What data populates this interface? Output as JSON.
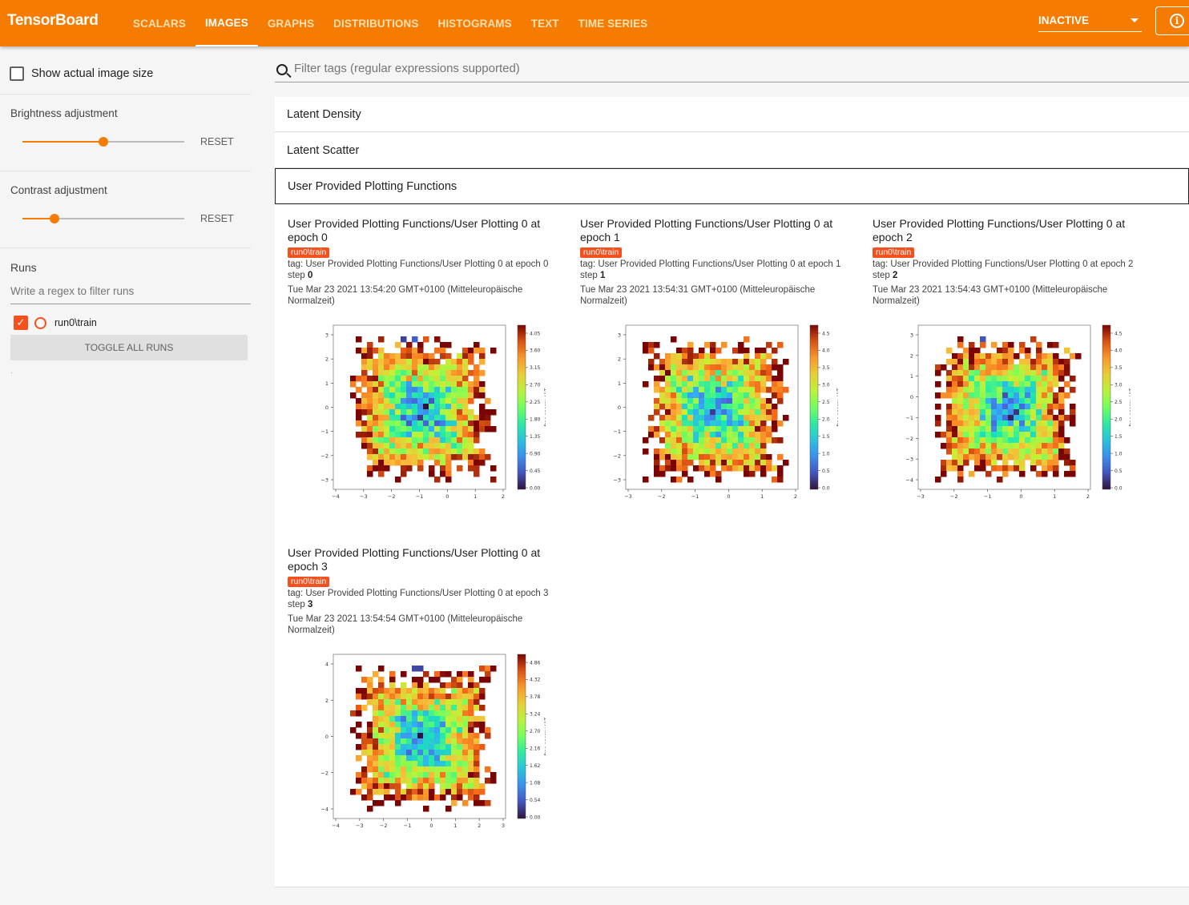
{
  "header": {
    "brand": "TensorBoard",
    "tabs": [
      {
        "label": "SCALARS",
        "active": false
      },
      {
        "label": "IMAGES",
        "active": true
      },
      {
        "label": "GRAPHS",
        "active": false
      },
      {
        "label": "DISTRIBUTIONS",
        "active": false
      },
      {
        "label": "HISTOGRAMS",
        "active": false
      },
      {
        "label": "TEXT",
        "active": false
      },
      {
        "label": "TIME SERIES",
        "active": false
      }
    ],
    "status_select": "INACTIVE",
    "info_icon": "info-icon"
  },
  "sidebar": {
    "show_actual_size": "Show actual image size",
    "brightness": {
      "label": "Brightness adjustment",
      "value": 0.5,
      "reset": "RESET"
    },
    "contrast": {
      "label": "Contrast adjustment",
      "value": 0.2,
      "reset": "RESET"
    },
    "runs": {
      "heading": "Runs",
      "filter_placeholder": "Write a regex to filter runs",
      "items": [
        {
          "label": "run0\\train",
          "checked": true,
          "color": "#f4511e"
        }
      ],
      "toggle_all": "TOGGLE ALL RUNS"
    }
  },
  "main": {
    "filter_placeholder": "Filter tags (regular expressions supported)",
    "categories": [
      {
        "title": "Latent Density"
      },
      {
        "title": "Latent Scatter"
      },
      {
        "title": "User Provided Plotting Functions"
      }
    ],
    "cards": [
      {
        "title": "User Provided Plotting Functions/User Plotting 0 at epoch 0",
        "run": "run0\\train",
        "tag": "tag: User Provided Plotting Functions/User Plotting 0 at epoch 0",
        "step_label": "step",
        "step": "0",
        "time": "Tue Mar 23 2021 13:54:20 GMT+0100 (Mitteleuropäische Normalzeit)",
        "plot": {
          "x_ticks": [
            "−4",
            "−3",
            "−2",
            "−1",
            "0",
            "1",
            "2"
          ],
          "y_ticks": [
            "3",
            "2",
            "1",
            "0",
            "−1",
            "−2",
            "−3"
          ],
          "cbar_ticks": [
            "4.05",
            "3.60",
            "3.15",
            "2.70",
            "2.25",
            "1.80",
            "1.35",
            "0.90",
            "0.45",
            "0.00"
          ],
          "cbar_label": "free energy / kT"
        }
      },
      {
        "title": "User Provided Plotting Functions/User Plotting 0 at epoch 1",
        "run": "run0\\train",
        "tag": "tag: User Provided Plotting Functions/User Plotting 0 at epoch 1",
        "step_label": "step",
        "step": "1",
        "time": "Tue Mar 23 2021 13:54:31 GMT+0100 (Mitteleuropäische Normalzeit)",
        "plot": {
          "x_ticks": [
            "−3",
            "−2",
            "−1",
            "0",
            "1",
            "2"
          ],
          "y_ticks": [
            "3",
            "2",
            "1",
            "0",
            "−1",
            "−2",
            "−3"
          ],
          "cbar_ticks": [
            "4.5",
            "4.0",
            "3.5",
            "3.0",
            "2.5",
            "2.0",
            "1.5",
            "1.0",
            "0.5",
            "0.0"
          ],
          "cbar_label": "free energy / kT"
        }
      },
      {
        "title": "User Provided Plotting Functions/User Plotting 0 at epoch 2",
        "run": "run0\\train",
        "tag": "tag: User Provided Plotting Functions/User Plotting 0 at epoch 2",
        "step_label": "step",
        "step": "2",
        "time": "Tue Mar 23 2021 13:54:43 GMT+0100 (Mitteleuropäische Normalzeit)",
        "plot": {
          "x_ticks": [
            "−3",
            "−2",
            "−1",
            "0",
            "1",
            "2"
          ],
          "y_ticks": [
            "3",
            "2",
            "1",
            "0",
            "−1",
            "−2",
            "−3",
            "−4"
          ],
          "cbar_ticks": [
            "4.5",
            "4.0",
            "3.5",
            "3.0",
            "2.5",
            "2.0",
            "1.5",
            "1.0",
            "0.5",
            "0.0"
          ],
          "cbar_label": "free energy / kT"
        }
      },
      {
        "title": "User Provided Plotting Functions/User Plotting 0 at epoch 3",
        "run": "run0\\train",
        "tag": "tag: User Provided Plotting Functions/User Plotting 0 at epoch 3",
        "step_label": "step",
        "step": "3",
        "time": "Tue Mar 23 2021 13:54:54 GMT+0100 (Mitteleuropäische Normalzeit)",
        "plot": {
          "x_ticks": [
            "−4",
            "−3",
            "−2",
            "−1",
            "0",
            "1",
            "2",
            "3"
          ],
          "y_ticks": [
            "4",
            "2",
            "0",
            "−2",
            "−4"
          ],
          "cbar_ticks": [
            "4.86",
            "4.32",
            "3.78",
            "3.24",
            "2.70",
            "2.16",
            "1.62",
            "1.08",
            "0.54",
            "0.00"
          ],
          "cbar_label": "free energy / kT"
        }
      }
    ]
  }
}
